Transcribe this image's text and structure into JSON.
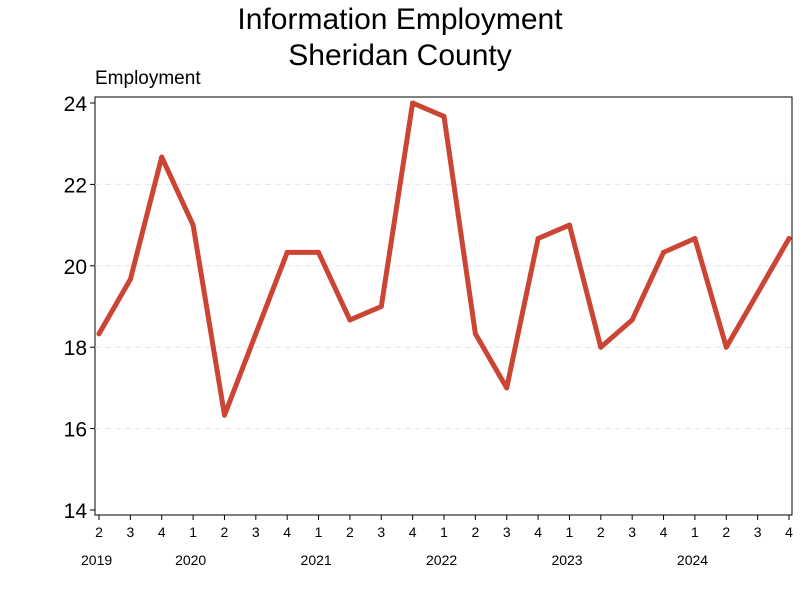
{
  "chart_data": {
    "type": "line",
    "title": [
      "Information Employment",
      "Sheridan County"
    ],
    "ylabel": "Employment",
    "xlabel": "",
    "ylim": [
      14,
      24
    ],
    "yticks": [
      14,
      16,
      18,
      20,
      22,
      24
    ],
    "grid": true,
    "x": [
      "2019 Q2",
      "2019 Q3",
      "2019 Q4",
      "2020 Q1",
      "2020 Q2",
      "2020 Q3",
      "2020 Q4",
      "2021 Q1",
      "2021 Q2",
      "2021 Q3",
      "2021 Q4",
      "2022 Q1",
      "2022 Q2",
      "2022 Q3",
      "2022 Q4",
      "2023 Q1",
      "2023 Q2",
      "2023 Q3",
      "2023 Q4",
      "2024 Q1",
      "2024 Q2",
      "2024 Q3",
      "2024 Q4"
    ],
    "quarter_labels": [
      "2",
      "3",
      "4",
      "1",
      "2",
      "3",
      "4",
      "1",
      "2",
      "3",
      "4",
      "1",
      "2",
      "3",
      "4",
      "1",
      "2",
      "3",
      "4",
      "1",
      "2",
      "3",
      "4"
    ],
    "year_labels": [
      {
        "label": "2019",
        "start": 0
      },
      {
        "label": "2020",
        "start": 3
      },
      {
        "label": "2021",
        "start": 7
      },
      {
        "label": "2022",
        "start": 11
      },
      {
        "label": "2023",
        "start": 15
      },
      {
        "label": "2024",
        "start": 19
      }
    ],
    "series": [
      {
        "values": [
          18.33,
          19.67,
          22.67,
          21.0,
          16.33,
          18.33,
          20.33,
          20.33,
          18.67,
          19.0,
          24.0,
          23.67,
          18.33,
          17.0,
          20.67,
          21.0,
          18.0,
          18.67,
          20.33,
          20.67,
          18.0,
          19.33,
          20.67
        ],
        "color": "#cc4433"
      }
    ]
  }
}
